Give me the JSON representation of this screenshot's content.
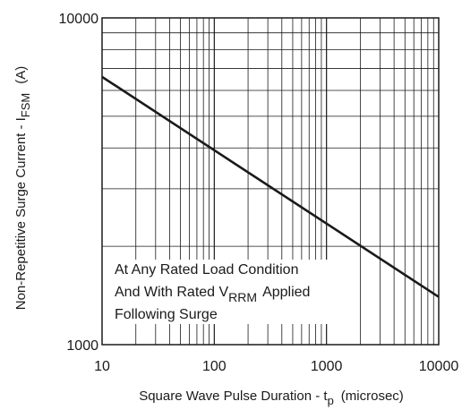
{
  "chart_data": {
    "type": "line",
    "x_scale": "log",
    "y_scale": "log",
    "xlim": [
      10,
      10000
    ],
    "ylim": [
      1000,
      10000
    ],
    "x_ticks": [
      {
        "value": 10,
        "label": "10"
      },
      {
        "value": 100,
        "label": "100"
      },
      {
        "value": 1000,
        "label": "1000"
      },
      {
        "value": 10000,
        "label": "10000"
      }
    ],
    "y_ticks": [
      {
        "value": 1000,
        "label": "1000"
      },
      {
        "value": 10000,
        "label": "10000"
      }
    ],
    "xlabel": {
      "main": "Square Wave Pulse Duration - t",
      "sub": "p",
      "unit": "(microsec)"
    },
    "ylabel": {
      "main": "Non-Repetitive Surge Current - I",
      "sub": "FSM",
      "unit": "(A)"
    },
    "grid": true,
    "series": [
      {
        "x": [
          10,
          10000
        ],
        "y": [
          6600,
          1400
        ],
        "color": "#1a1a1a"
      }
    ],
    "annotation": {
      "line1": "At Any Rated Load Condition",
      "line2_pre": "And With Rated V",
      "line2_sub": "RRM",
      "line2_post": "Applied",
      "line3": "Following Surge"
    }
  }
}
